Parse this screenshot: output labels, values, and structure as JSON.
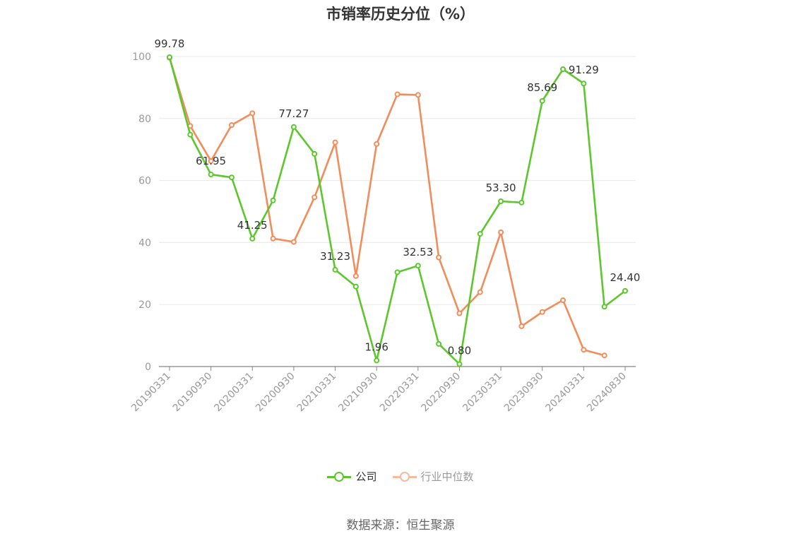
{
  "title": "市销率历史分位（%）",
  "source": "数据来源：恒生聚源",
  "colors": {
    "company": "#5cc72c",
    "industry": "#f28c5a",
    "industry_legend": "#f8b99c",
    "grid": "#e6e8f0",
    "axis": "#999999",
    "axis_line": "#888888",
    "label": "#333333"
  },
  "legend": [
    {
      "name": "公司",
      "key": "company"
    },
    {
      "name": "行业中位数",
      "key": "industry"
    }
  ],
  "chart_data": {
    "type": "line",
    "title": "市销率历史分位（%）",
    "ylim": [
      0,
      100
    ],
    "yticks": [
      0,
      20,
      40,
      60,
      80,
      100
    ],
    "grid": true,
    "legend_placement": "bottom",
    "x_tick_labels": [
      "20190331",
      "20190930",
      "20200331",
      "20200930",
      "20210331",
      "20210930",
      "20220331",
      "20220930",
      "20230331",
      "20230930",
      "20240331",
      "20240830"
    ],
    "points_count": 23,
    "series": [
      {
        "name": "公司",
        "key": "company",
        "values": [
          99.78,
          74.8,
          61.95,
          61.0,
          41.25,
          53.6,
          77.27,
          68.6,
          31.23,
          25.8,
          1.96,
          30.4,
          32.53,
          7.3,
          0.8,
          42.8,
          53.3,
          52.9,
          85.69,
          95.9,
          91.29,
          19.3,
          24.4
        ],
        "labels": {
          "0": "99.78",
          "2": "61.95",
          "4": "41.25",
          "6": "77.27",
          "8": "31.23",
          "10": "1.96",
          "12": "32.53",
          "14": "0.80",
          "16": "53.30",
          "18": "85.69",
          "20": "91.29",
          "22": "24.40"
        }
      },
      {
        "name": "行业中位数",
        "key": "industry",
        "values": [
          99.6,
          77.6,
          66.3,
          77.9,
          81.7,
          41.3,
          40.2,
          54.6,
          72.3,
          29.2,
          71.8,
          87.8,
          87.6,
          35.2,
          17.2,
          24.0,
          43.3,
          13.0,
          17.6,
          21.4,
          5.4,
          3.6,
          null
        ]
      }
    ]
  }
}
